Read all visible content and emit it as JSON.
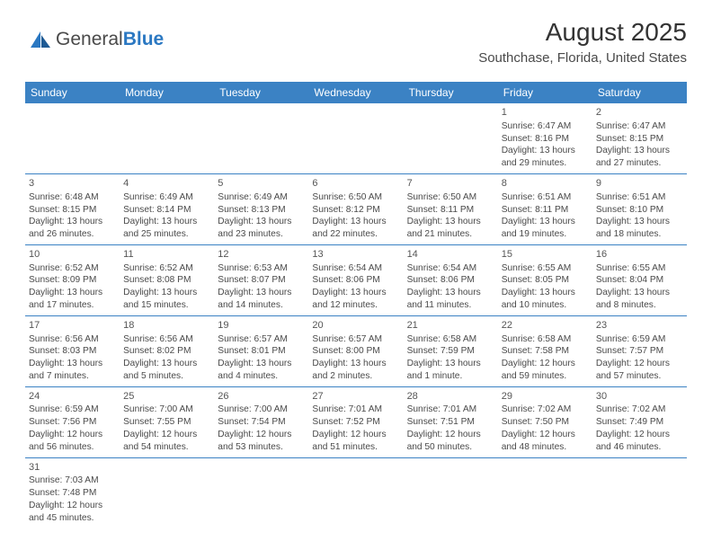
{
  "logo": {
    "text1": "General",
    "text2": "Blue"
  },
  "title": "August 2025",
  "location": "Southchase, Florida, United States",
  "colors": {
    "header_bg": "#3b82c4",
    "header_text": "#ffffff",
    "border": "#3b82c4",
    "text": "#4a4a4a",
    "title": "#333333"
  },
  "days_of_week": [
    "Sunday",
    "Monday",
    "Tuesday",
    "Wednesday",
    "Thursday",
    "Friday",
    "Saturday"
  ],
  "weeks": [
    [
      null,
      null,
      null,
      null,
      null,
      {
        "n": "1",
        "sr": "Sunrise: 6:47 AM",
        "ss": "Sunset: 8:16 PM",
        "dl1": "Daylight: 13 hours",
        "dl2": "and 29 minutes."
      },
      {
        "n": "2",
        "sr": "Sunrise: 6:47 AM",
        "ss": "Sunset: 8:15 PM",
        "dl1": "Daylight: 13 hours",
        "dl2": "and 27 minutes."
      }
    ],
    [
      {
        "n": "3",
        "sr": "Sunrise: 6:48 AM",
        "ss": "Sunset: 8:15 PM",
        "dl1": "Daylight: 13 hours",
        "dl2": "and 26 minutes."
      },
      {
        "n": "4",
        "sr": "Sunrise: 6:49 AM",
        "ss": "Sunset: 8:14 PM",
        "dl1": "Daylight: 13 hours",
        "dl2": "and 25 minutes."
      },
      {
        "n": "5",
        "sr": "Sunrise: 6:49 AM",
        "ss": "Sunset: 8:13 PM",
        "dl1": "Daylight: 13 hours",
        "dl2": "and 23 minutes."
      },
      {
        "n": "6",
        "sr": "Sunrise: 6:50 AM",
        "ss": "Sunset: 8:12 PM",
        "dl1": "Daylight: 13 hours",
        "dl2": "and 22 minutes."
      },
      {
        "n": "7",
        "sr": "Sunrise: 6:50 AM",
        "ss": "Sunset: 8:11 PM",
        "dl1": "Daylight: 13 hours",
        "dl2": "and 21 minutes."
      },
      {
        "n": "8",
        "sr": "Sunrise: 6:51 AM",
        "ss": "Sunset: 8:11 PM",
        "dl1": "Daylight: 13 hours",
        "dl2": "and 19 minutes."
      },
      {
        "n": "9",
        "sr": "Sunrise: 6:51 AM",
        "ss": "Sunset: 8:10 PM",
        "dl1": "Daylight: 13 hours",
        "dl2": "and 18 minutes."
      }
    ],
    [
      {
        "n": "10",
        "sr": "Sunrise: 6:52 AM",
        "ss": "Sunset: 8:09 PM",
        "dl1": "Daylight: 13 hours",
        "dl2": "and 17 minutes."
      },
      {
        "n": "11",
        "sr": "Sunrise: 6:52 AM",
        "ss": "Sunset: 8:08 PM",
        "dl1": "Daylight: 13 hours",
        "dl2": "and 15 minutes."
      },
      {
        "n": "12",
        "sr": "Sunrise: 6:53 AM",
        "ss": "Sunset: 8:07 PM",
        "dl1": "Daylight: 13 hours",
        "dl2": "and 14 minutes."
      },
      {
        "n": "13",
        "sr": "Sunrise: 6:54 AM",
        "ss": "Sunset: 8:06 PM",
        "dl1": "Daylight: 13 hours",
        "dl2": "and 12 minutes."
      },
      {
        "n": "14",
        "sr": "Sunrise: 6:54 AM",
        "ss": "Sunset: 8:06 PM",
        "dl1": "Daylight: 13 hours",
        "dl2": "and 11 minutes."
      },
      {
        "n": "15",
        "sr": "Sunrise: 6:55 AM",
        "ss": "Sunset: 8:05 PM",
        "dl1": "Daylight: 13 hours",
        "dl2": "and 10 minutes."
      },
      {
        "n": "16",
        "sr": "Sunrise: 6:55 AM",
        "ss": "Sunset: 8:04 PM",
        "dl1": "Daylight: 13 hours",
        "dl2": "and 8 minutes."
      }
    ],
    [
      {
        "n": "17",
        "sr": "Sunrise: 6:56 AM",
        "ss": "Sunset: 8:03 PM",
        "dl1": "Daylight: 13 hours",
        "dl2": "and 7 minutes."
      },
      {
        "n": "18",
        "sr": "Sunrise: 6:56 AM",
        "ss": "Sunset: 8:02 PM",
        "dl1": "Daylight: 13 hours",
        "dl2": "and 5 minutes."
      },
      {
        "n": "19",
        "sr": "Sunrise: 6:57 AM",
        "ss": "Sunset: 8:01 PM",
        "dl1": "Daylight: 13 hours",
        "dl2": "and 4 minutes."
      },
      {
        "n": "20",
        "sr": "Sunrise: 6:57 AM",
        "ss": "Sunset: 8:00 PM",
        "dl1": "Daylight: 13 hours",
        "dl2": "and 2 minutes."
      },
      {
        "n": "21",
        "sr": "Sunrise: 6:58 AM",
        "ss": "Sunset: 7:59 PM",
        "dl1": "Daylight: 13 hours",
        "dl2": "and 1 minute."
      },
      {
        "n": "22",
        "sr": "Sunrise: 6:58 AM",
        "ss": "Sunset: 7:58 PM",
        "dl1": "Daylight: 12 hours",
        "dl2": "and 59 minutes."
      },
      {
        "n": "23",
        "sr": "Sunrise: 6:59 AM",
        "ss": "Sunset: 7:57 PM",
        "dl1": "Daylight: 12 hours",
        "dl2": "and 57 minutes."
      }
    ],
    [
      {
        "n": "24",
        "sr": "Sunrise: 6:59 AM",
        "ss": "Sunset: 7:56 PM",
        "dl1": "Daylight: 12 hours",
        "dl2": "and 56 minutes."
      },
      {
        "n": "25",
        "sr": "Sunrise: 7:00 AM",
        "ss": "Sunset: 7:55 PM",
        "dl1": "Daylight: 12 hours",
        "dl2": "and 54 minutes."
      },
      {
        "n": "26",
        "sr": "Sunrise: 7:00 AM",
        "ss": "Sunset: 7:54 PM",
        "dl1": "Daylight: 12 hours",
        "dl2": "and 53 minutes."
      },
      {
        "n": "27",
        "sr": "Sunrise: 7:01 AM",
        "ss": "Sunset: 7:52 PM",
        "dl1": "Daylight: 12 hours",
        "dl2": "and 51 minutes."
      },
      {
        "n": "28",
        "sr": "Sunrise: 7:01 AM",
        "ss": "Sunset: 7:51 PM",
        "dl1": "Daylight: 12 hours",
        "dl2": "and 50 minutes."
      },
      {
        "n": "29",
        "sr": "Sunrise: 7:02 AM",
        "ss": "Sunset: 7:50 PM",
        "dl1": "Daylight: 12 hours",
        "dl2": "and 48 minutes."
      },
      {
        "n": "30",
        "sr": "Sunrise: 7:02 AM",
        "ss": "Sunset: 7:49 PM",
        "dl1": "Daylight: 12 hours",
        "dl2": "and 46 minutes."
      }
    ],
    [
      {
        "n": "31",
        "sr": "Sunrise: 7:03 AM",
        "ss": "Sunset: 7:48 PM",
        "dl1": "Daylight: 12 hours",
        "dl2": "and 45 minutes."
      },
      null,
      null,
      null,
      null,
      null,
      null
    ]
  ]
}
